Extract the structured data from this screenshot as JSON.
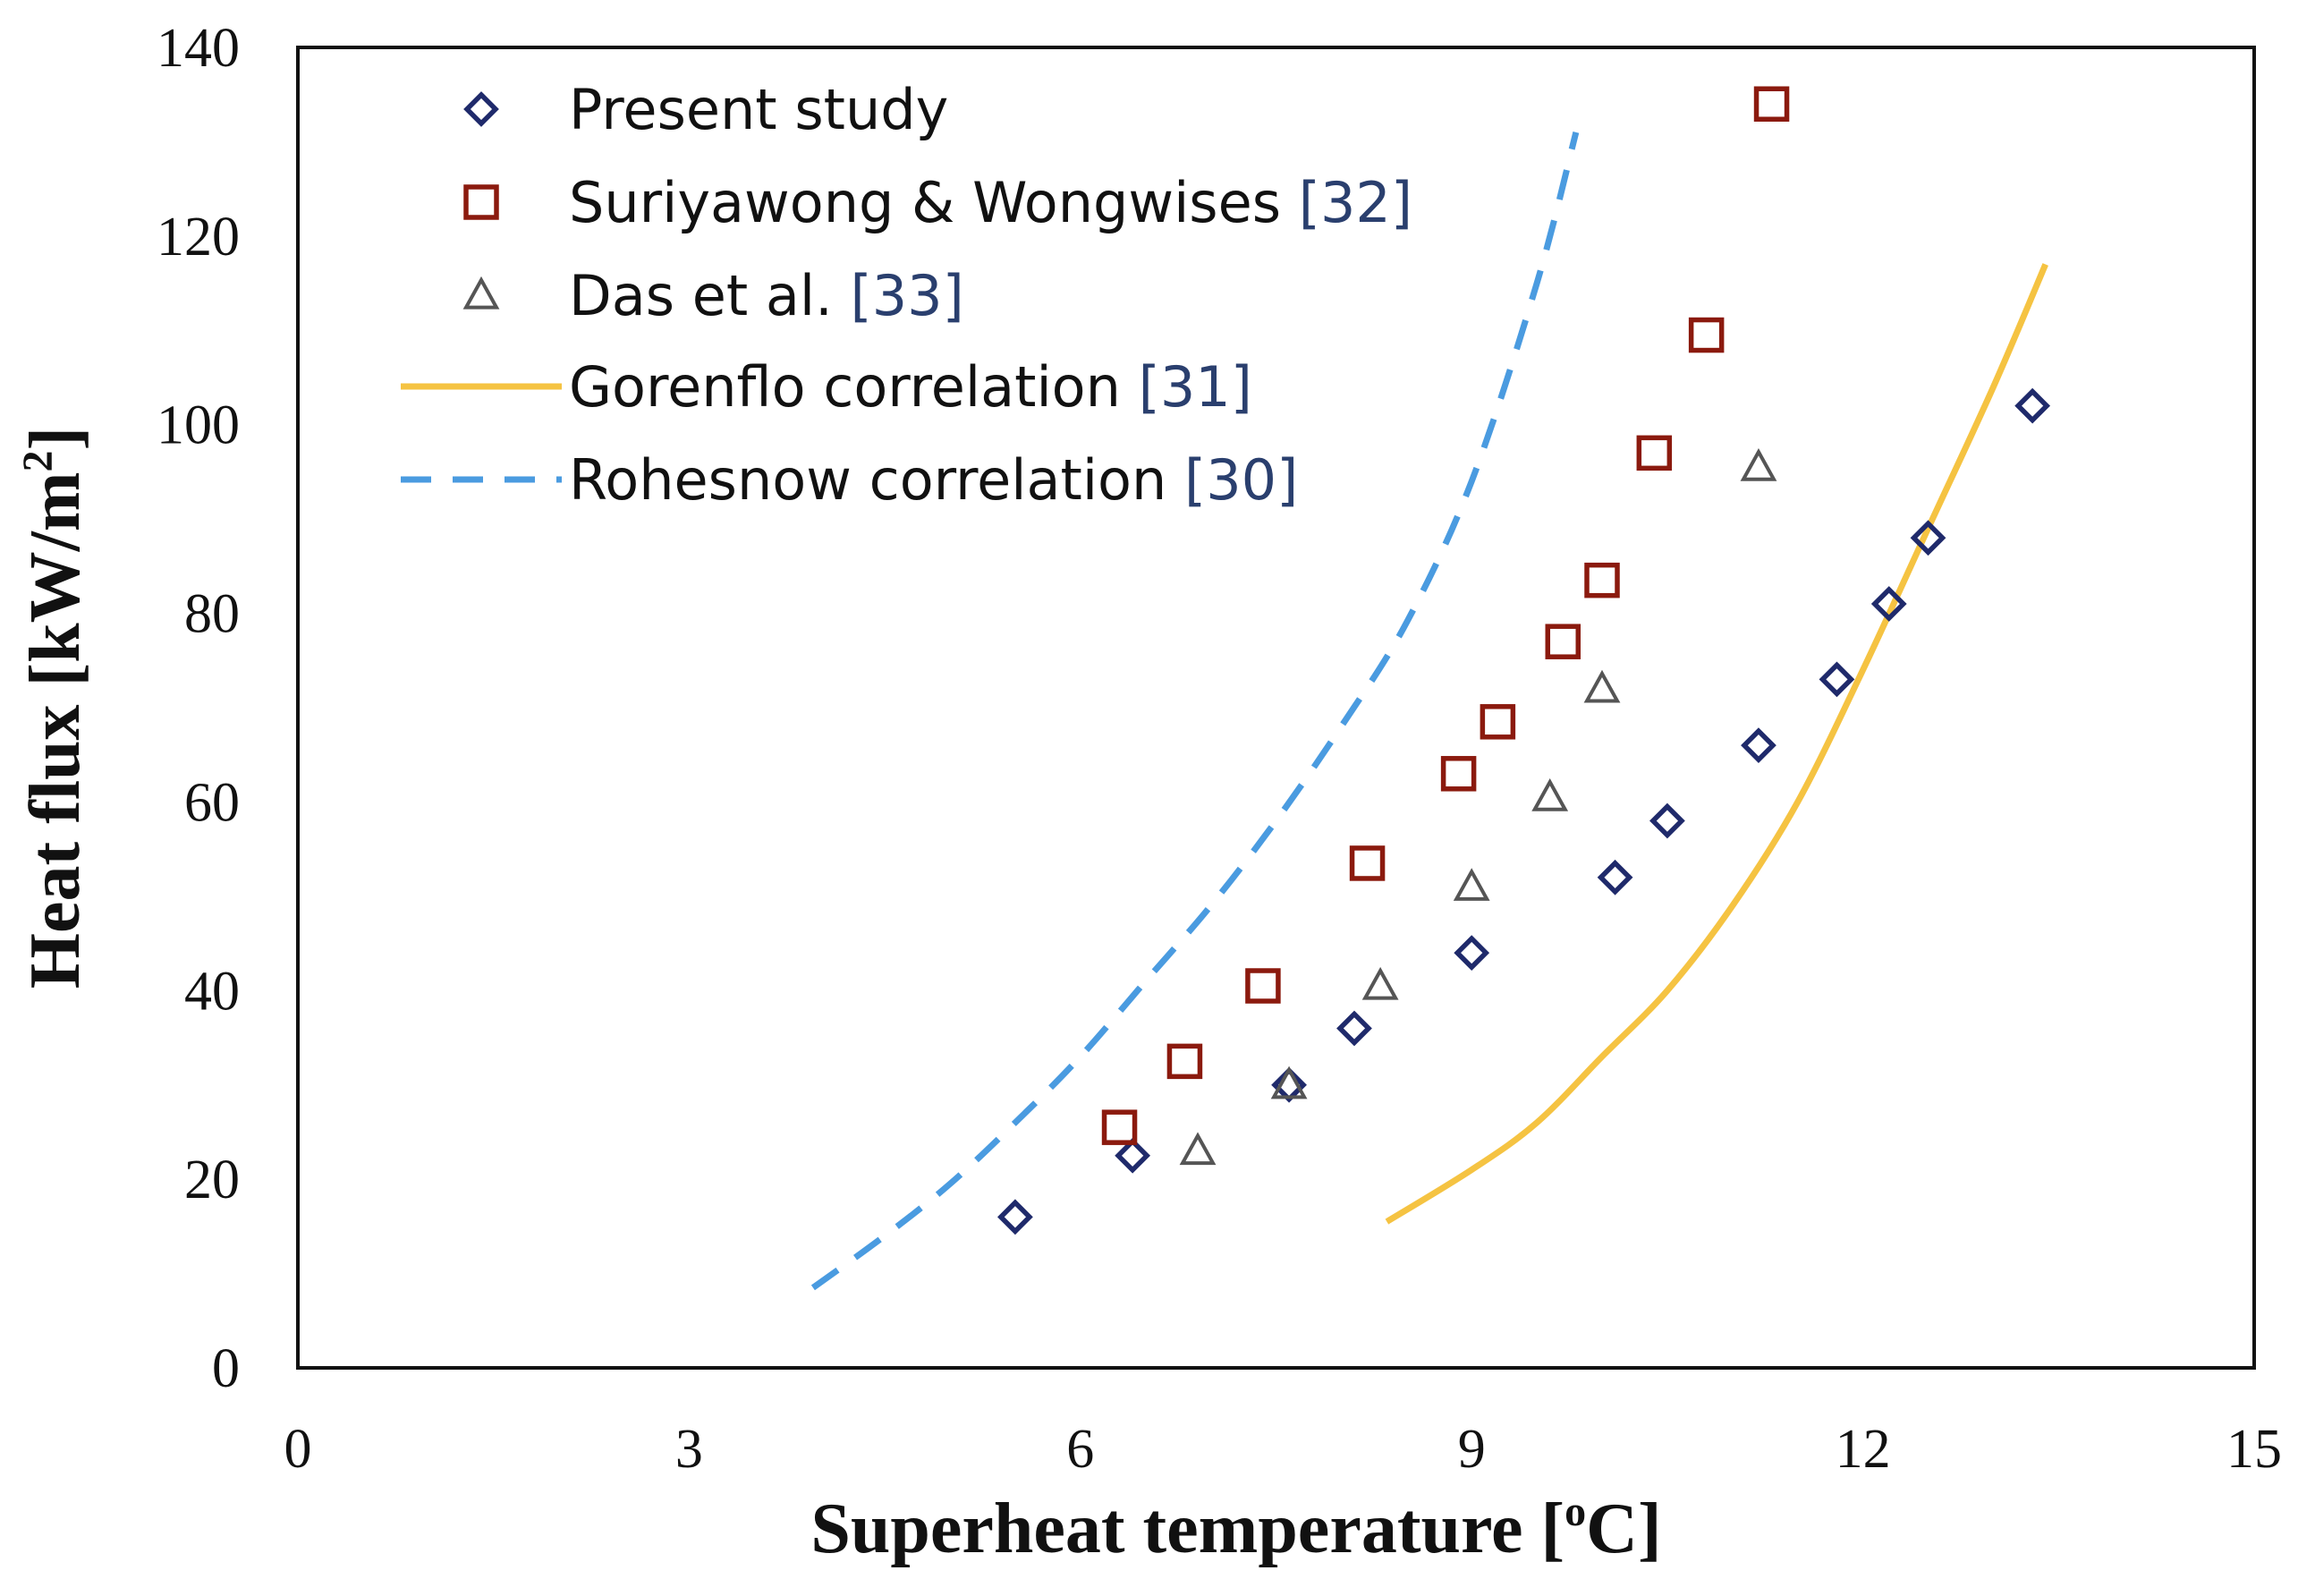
{
  "chart_data": {
    "type": "scatter",
    "title": "",
    "xlabel": "Superheat temperature [",
    "xlabel_sup": "o",
    "xlabel_tail": "C]",
    "ylabel": "Heat flux [kW/m",
    "ylabel_sup": "2",
    "ylabel_tail": "]",
    "xlim": [
      0,
      15
    ],
    "ylim": [
      0,
      140
    ],
    "xticks": [
      0,
      3,
      6,
      9,
      12,
      15
    ],
    "yticks": [
      0,
      20,
      40,
      60,
      80,
      100,
      120,
      140
    ],
    "grid": false,
    "legend_position": "top-left",
    "series": [
      {
        "name": "Present study",
        "ref": "",
        "kind": "marker",
        "marker": "diamond",
        "color": "#1f2a6b",
        "points": [
          [
            5.5,
            16
          ],
          [
            6.4,
            22.5
          ],
          [
            7.6,
            30
          ],
          [
            8.1,
            36
          ],
          [
            9.0,
            44
          ],
          [
            10.1,
            52
          ],
          [
            10.5,
            58
          ],
          [
            11.2,
            66
          ],
          [
            11.8,
            73
          ],
          [
            12.2,
            81
          ],
          [
            12.5,
            88
          ],
          [
            13.3,
            102
          ]
        ]
      },
      {
        "name": "Suriyawong & Wongwises ",
        "ref": "[32]",
        "kind": "marker",
        "marker": "square",
        "color": "#8b1a0e",
        "points": [
          [
            6.3,
            25.5
          ],
          [
            6.8,
            32.5
          ],
          [
            7.4,
            40.5
          ],
          [
            8.2,
            53.5
          ],
          [
            8.9,
            63
          ],
          [
            9.2,
            68.5
          ],
          [
            9.7,
            77
          ],
          [
            10.0,
            83.5
          ],
          [
            10.4,
            97
          ],
          [
            10.8,
            109.5
          ],
          [
            11.3,
            134
          ]
        ]
      },
      {
        "name": "Das et al. ",
        "ref": "[33]",
        "kind": "marker",
        "marker": "triangle",
        "color": "#555555",
        "points": [
          [
            6.9,
            23
          ],
          [
            7.6,
            30
          ],
          [
            8.3,
            40.5
          ],
          [
            9.0,
            51
          ],
          [
            9.6,
            60.5
          ],
          [
            10.0,
            72
          ],
          [
            11.2,
            95.5
          ]
        ]
      },
      {
        "name": "Gorenflo correlation ",
        "ref": "[31]",
        "kind": "line",
        "dash": "solid",
        "color": "#f5c342",
        "points": [
          [
            8.35,
            15.5
          ],
          [
            9.0,
            21
          ],
          [
            9.5,
            26
          ],
          [
            10.0,
            33
          ],
          [
            10.5,
            40
          ],
          [
            11.0,
            49
          ],
          [
            11.5,
            60
          ],
          [
            12.0,
            74
          ],
          [
            12.5,
            89
          ],
          [
            13.0,
            104
          ],
          [
            13.4,
            117
          ]
        ]
      },
      {
        "name": "Rohesnow correlation ",
        "ref": "[30]",
        "kind": "line",
        "dash": "dashed",
        "color": "#4a9be0",
        "points": [
          [
            3.95,
            8.5
          ],
          [
            4.5,
            14
          ],
          [
            5.0,
            19.5
          ],
          [
            5.5,
            26
          ],
          [
            6.0,
            33
          ],
          [
            6.5,
            41
          ],
          [
            7.0,
            49
          ],
          [
            7.5,
            58
          ],
          [
            8.0,
            68
          ],
          [
            8.5,
            79
          ],
          [
            9.0,
            94
          ],
          [
            9.5,
            115
          ],
          [
            9.8,
            131
          ]
        ]
      }
    ]
  }
}
